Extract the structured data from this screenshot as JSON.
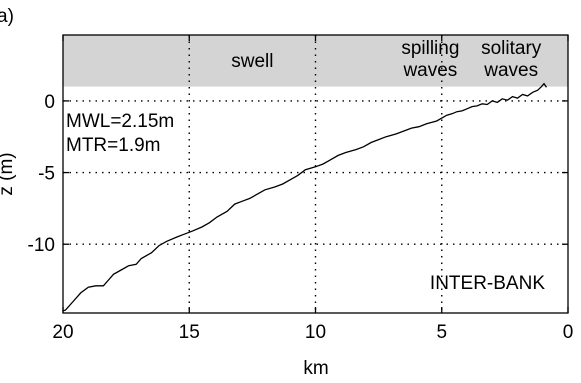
{
  "chart_data": {
    "type": "line",
    "panel_label": "a)",
    "xlabel": "km",
    "ylabel": "z (m)",
    "xlim": [
      20,
      0
    ],
    "ylim": [
      -14.8,
      4.6
    ],
    "x_ticks": [
      20,
      15,
      10,
      5,
      0
    ],
    "y_ticks": [
      0,
      -5,
      -10
    ],
    "grid": true,
    "band": {
      "y_from": 1.0,
      "y_to": 4.6,
      "color": "#d4d4d4"
    },
    "zone_labels": [
      {
        "lines": [
          "swell"
        ],
        "x": 12.5
      },
      {
        "lines": [
          "spilling",
          "waves"
        ],
        "x": 5.45
      },
      {
        "lines": [
          "solitary",
          "waves"
        ],
        "x": 2.25
      }
    ],
    "annotations": {
      "mwl": "MWL=2.15m",
      "mtr": "MTR=1.9m",
      "site": "INTER-BANK"
    },
    "series": [
      {
        "x": [
          20.3,
          19.9,
          19.6,
          19.3,
          19.0,
          18.7,
          18.4,
          18.2,
          18.0,
          17.7,
          17.4,
          17.1,
          16.9,
          16.5,
          16.2,
          15.9,
          15.5,
          15.2,
          14.9,
          14.5,
          14.2,
          13.9,
          13.5,
          13.2,
          12.9,
          12.6,
          12.3,
          12.0,
          11.6,
          11.3,
          11.0,
          10.7,
          10.4,
          10.0,
          9.7,
          9.4,
          9.1,
          8.8,
          8.4,
          8.1,
          7.8,
          7.5,
          7.2,
          6.8,
          6.5,
          6.2,
          5.9,
          5.6,
          5.2,
          5.0,
          4.8,
          4.6,
          4.4,
          4.2,
          4.0,
          3.8,
          3.6,
          3.4,
          3.2,
          3.0,
          2.8,
          2.6,
          2.4,
          2.2,
          2.0,
          1.8,
          1.6,
          1.4,
          1.2,
          1.05,
          0.95,
          0.85
        ],
        "y": [
          -14.8,
          -14.6,
          -14.0,
          -13.4,
          -13.0,
          -12.9,
          -12.9,
          -12.5,
          -12.1,
          -11.8,
          -11.5,
          -11.4,
          -11.0,
          -10.6,
          -10.1,
          -9.8,
          -9.5,
          -9.3,
          -9.1,
          -8.8,
          -8.5,
          -8.1,
          -7.7,
          -7.2,
          -7.0,
          -6.8,
          -6.5,
          -6.2,
          -6.0,
          -5.8,
          -5.5,
          -5.2,
          -4.8,
          -4.6,
          -4.4,
          -4.1,
          -3.8,
          -3.6,
          -3.4,
          -3.2,
          -2.9,
          -2.7,
          -2.5,
          -2.3,
          -2.1,
          -1.9,
          -1.8,
          -1.6,
          -1.4,
          -1.2,
          -1.0,
          -0.9,
          -0.75,
          -0.7,
          -0.55,
          -0.4,
          -0.35,
          -0.2,
          -0.25,
          0.0,
          -0.1,
          0.15,
          0.05,
          0.3,
          0.2,
          0.45,
          0.35,
          0.6,
          0.75,
          1.0,
          1.2,
          0.95
        ]
      }
    ]
  }
}
